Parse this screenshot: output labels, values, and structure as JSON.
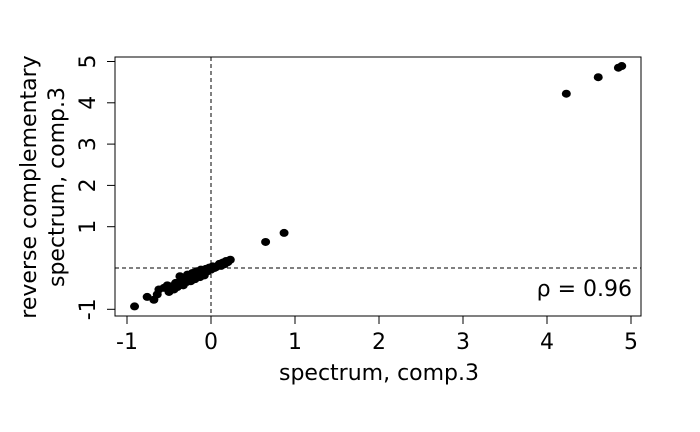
{
  "chart_data": {
    "type": "scatter",
    "xlabel": "spectrum, comp.3",
    "ylabel_lines": [
      "reverse complementary",
      "spectrum, comp.3"
    ],
    "xlim": [
      -1,
      5
    ],
    "ylim": [
      -1,
      5
    ],
    "x_ticks": [
      -1,
      0,
      1,
      2,
      3,
      4,
      5
    ],
    "x_tick_labels": [
      "-1",
      "0",
      "1",
      "2",
      "3",
      "4",
      "5"
    ],
    "y_ticks": [
      -1,
      1,
      2,
      3,
      4,
      5
    ],
    "y_tick_labels": [
      "-1",
      "1",
      "2",
      "3",
      "4",
      "5"
    ],
    "reference_lines": {
      "vertical_x": 0,
      "horizontal_y": 0,
      "style": "dashed"
    },
    "annotation": "ρ = 0.96",
    "annotation_position": "bottom-right",
    "marker_color": "#000000",
    "points": [
      {
        "x": -0.91,
        "y": -0.93
      },
      {
        "x": -0.76,
        "y": -0.7
      },
      {
        "x": -0.68,
        "y": -0.77
      },
      {
        "x": -0.64,
        "y": -0.64
      },
      {
        "x": -0.62,
        "y": -0.52
      },
      {
        "x": -0.56,
        "y": -0.48
      },
      {
        "x": -0.52,
        "y": -0.42
      },
      {
        "x": -0.5,
        "y": -0.58
      },
      {
        "x": -0.48,
        "y": -0.5
      },
      {
        "x": -0.46,
        "y": -0.44
      },
      {
        "x": -0.44,
        "y": -0.52
      },
      {
        "x": -0.42,
        "y": -0.36
      },
      {
        "x": -0.4,
        "y": -0.46
      },
      {
        "x": -0.38,
        "y": -0.38
      },
      {
        "x": -0.37,
        "y": -0.2
      },
      {
        "x": -0.35,
        "y": -0.3
      },
      {
        "x": -0.33,
        "y": -0.42
      },
      {
        "x": -0.31,
        "y": -0.26
      },
      {
        "x": -0.29,
        "y": -0.34
      },
      {
        "x": -0.28,
        "y": -0.16
      },
      {
        "x": -0.26,
        "y": -0.24
      },
      {
        "x": -0.24,
        "y": -0.32
      },
      {
        "x": -0.22,
        "y": -0.12
      },
      {
        "x": -0.2,
        "y": -0.2
      },
      {
        "x": -0.19,
        "y": -0.27
      },
      {
        "x": -0.17,
        "y": -0.08
      },
      {
        "x": -0.15,
        "y": -0.16
      },
      {
        "x": -0.13,
        "y": -0.22
      },
      {
        "x": -0.12,
        "y": -0.04
      },
      {
        "x": -0.1,
        "y": -0.11
      },
      {
        "x": -0.08,
        "y": -0.18
      },
      {
        "x": -0.06,
        "y": -0.02
      },
      {
        "x": -0.04,
        "y": -0.08
      },
      {
        "x": -0.02,
        "y": 0.01
      },
      {
        "x": 0.0,
        "y": -0.04
      },
      {
        "x": 0.02,
        "y": 0.04
      },
      {
        "x": 0.04,
        "y": 0.0
      },
      {
        "x": 0.06,
        "y": 0.02
      },
      {
        "x": 0.1,
        "y": 0.1
      },
      {
        "x": 0.12,
        "y": 0.05
      },
      {
        "x": 0.14,
        "y": 0.13
      },
      {
        "x": 0.16,
        "y": 0.09
      },
      {
        "x": 0.18,
        "y": 0.17
      },
      {
        "x": 0.2,
        "y": 0.14
      },
      {
        "x": 0.23,
        "y": 0.2
      },
      {
        "x": 0.65,
        "y": 0.63
      },
      {
        "x": 0.87,
        "y": 0.85
      },
      {
        "x": 4.23,
        "y": 4.22
      },
      {
        "x": 4.61,
        "y": 4.62
      },
      {
        "x": 4.85,
        "y": 4.85
      },
      {
        "x": 4.89,
        "y": 4.89
      }
    ]
  }
}
